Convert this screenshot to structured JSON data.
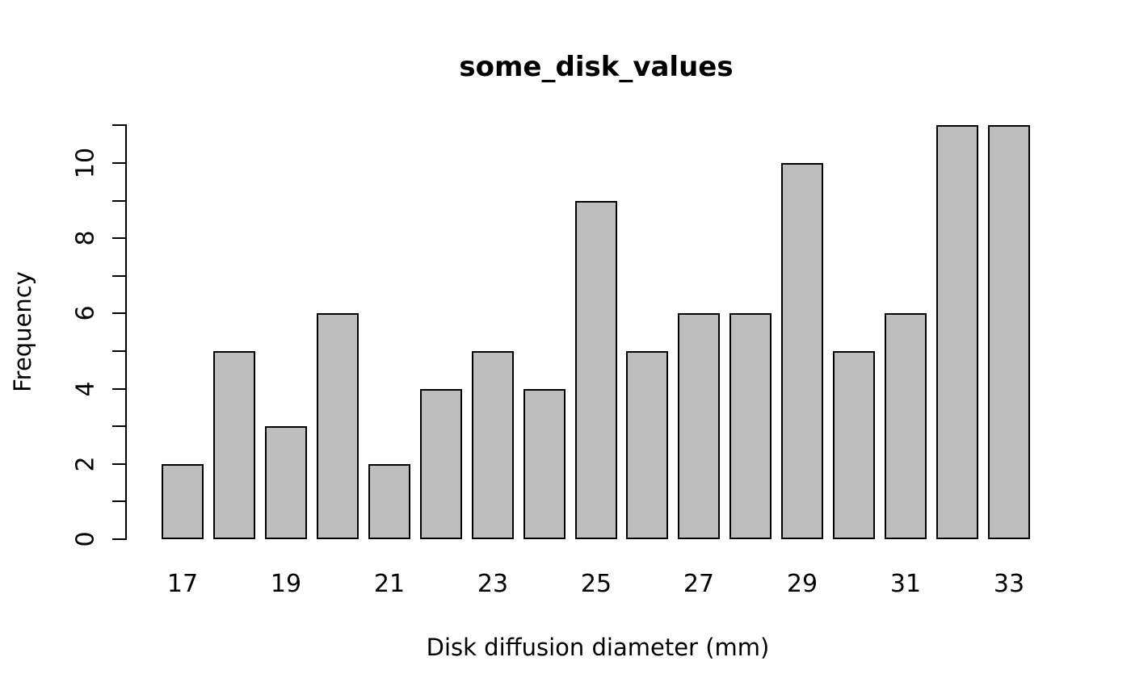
{
  "chart_data": {
    "type": "bar",
    "style": "histogram",
    "title": "some_disk_values",
    "xlabel": "Disk diffusion diameter (mm)",
    "ylabel": "Frequency",
    "categories": [
      17,
      18,
      19,
      20,
      21,
      22,
      23,
      24,
      25,
      26,
      27,
      28,
      29,
      30,
      31,
      32,
      33
    ],
    "values": [
      2,
      5,
      3,
      6,
      2,
      4,
      5,
      4,
      9,
      5,
      6,
      6,
      10,
      5,
      6,
      11,
      11
    ],
    "x_tick_labels": [
      "17",
      "19",
      "21",
      "23",
      "25",
      "27",
      "29",
      "31",
      "33"
    ],
    "x_labeled_every_nth_bar": 2,
    "y_tick_labels": [
      "0",
      "2",
      "4",
      "6",
      "8",
      "10"
    ],
    "y_tick_step": 1,
    "y_label_step": 2,
    "ylim": [
      0,
      11
    ],
    "grid": false,
    "legend_position": "none",
    "bar_fill_color": "#bebebe",
    "bar_border_color": "#000000",
    "background_color": "#ffffff",
    "text_color": "#000000"
  }
}
